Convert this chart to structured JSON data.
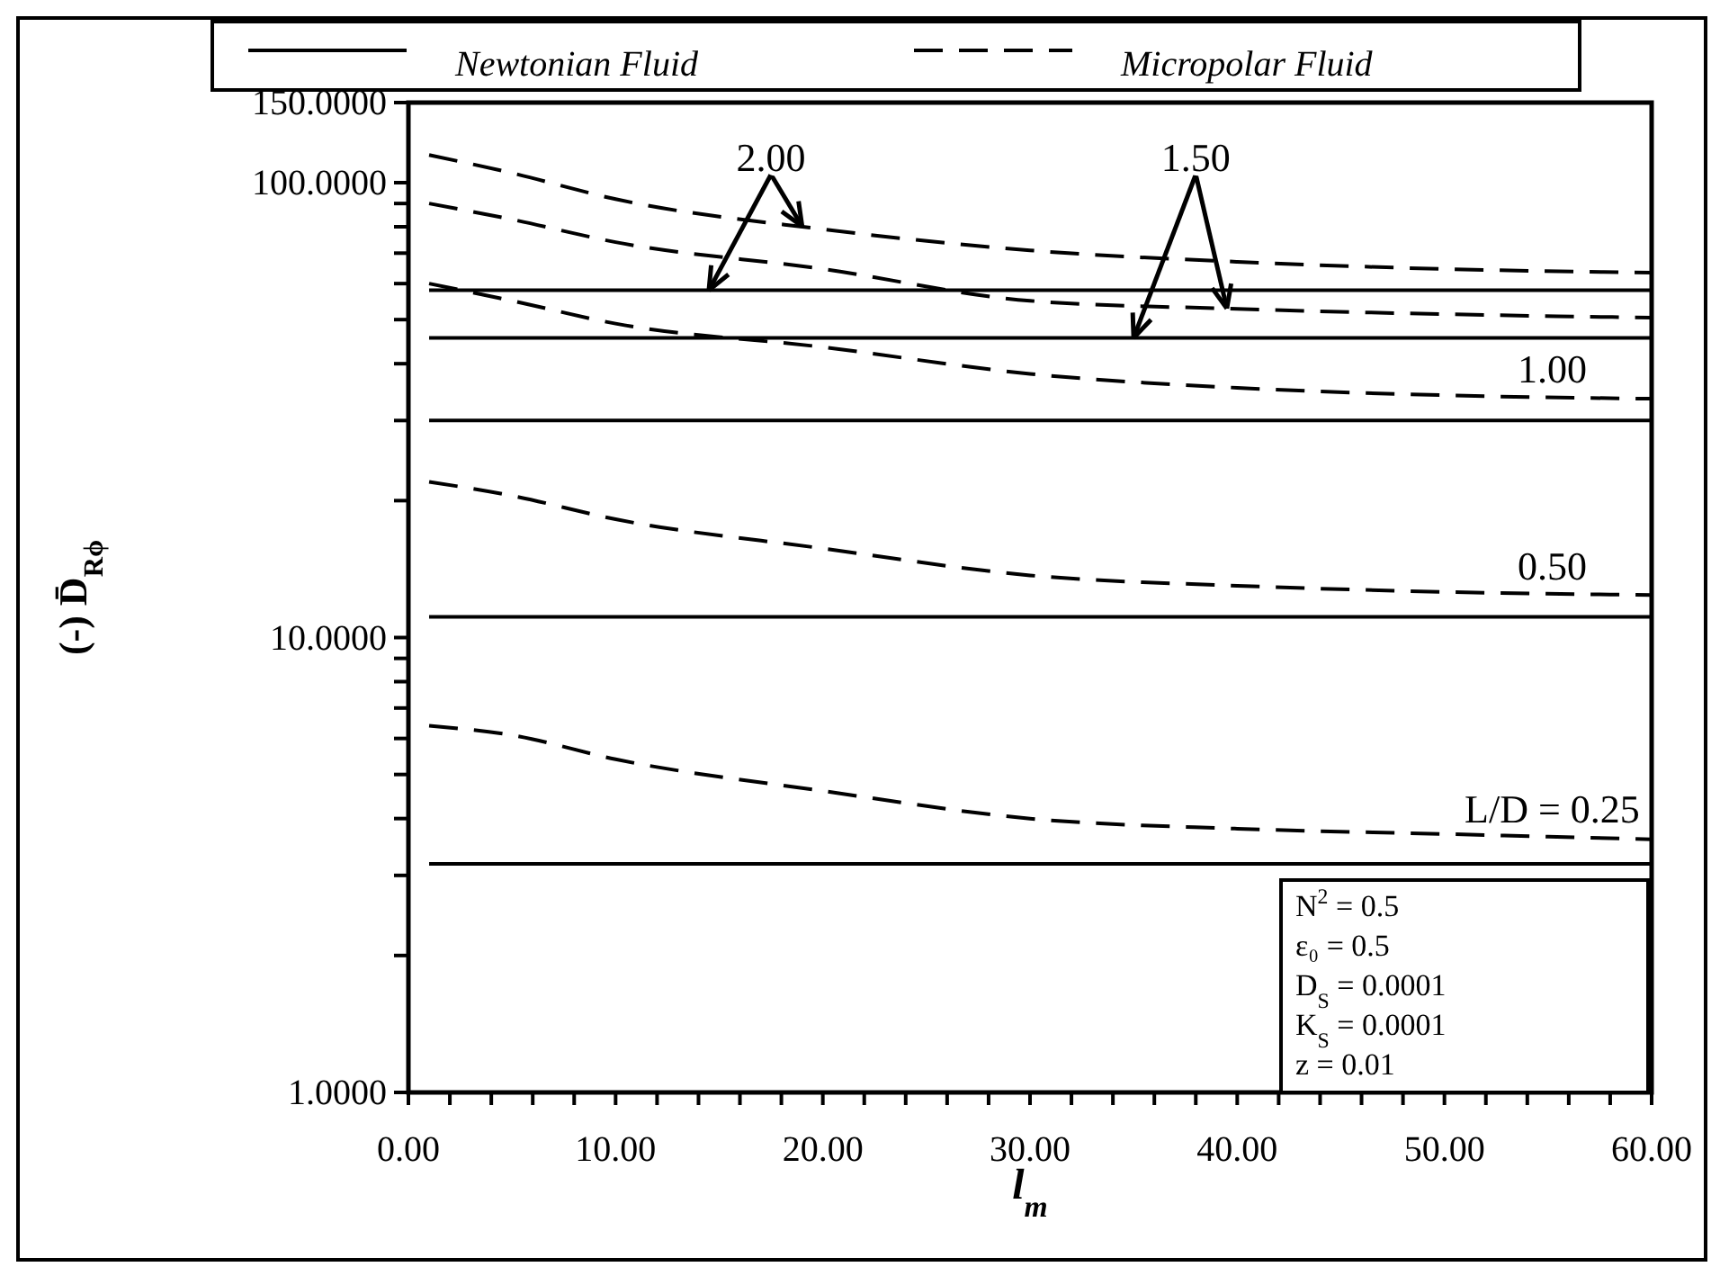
{
  "chart_data": {
    "type": "line",
    "xlabel": "l$_{m}$",
    "ylabel": "(-) D̄$_{Rϕ}$",
    "log": "y",
    "legend": "top",
    "marker": "none",
    "x": [
      1,
      5,
      10,
      20,
      30,
      40,
      50,
      60
    ],
    "xlim": [
      0,
      60
    ],
    "ylim": [
      1,
      150
    ],
    "xticks": [
      {
        "value": 0,
        "label": "0.00"
      },
      {
        "value": 2,
        "label": null
      },
      {
        "value": 4,
        "label": null
      },
      {
        "value": 6,
        "label": null
      },
      {
        "value": 8,
        "label": null
      },
      {
        "value": 10,
        "label": "10.00"
      },
      {
        "value": 12,
        "label": null
      },
      {
        "value": 14,
        "label": null
      },
      {
        "value": 16,
        "label": null
      },
      {
        "value": 18,
        "label": null
      },
      {
        "value": 20,
        "label": "20.00"
      },
      {
        "value": 22,
        "label": null
      },
      {
        "value": 24,
        "label": null
      },
      {
        "value": 26,
        "label": null
      },
      {
        "value": 28,
        "label": null
      },
      {
        "value": 30,
        "label": "30.00"
      },
      {
        "value": 32,
        "label": null
      },
      {
        "value": 34,
        "label": null
      },
      {
        "value": 36,
        "label": null
      },
      {
        "value": 38,
        "label": null
      },
      {
        "value": 40,
        "label": "40.00"
      },
      {
        "value": 42,
        "label": null
      },
      {
        "value": 44,
        "label": null
      },
      {
        "value": 46,
        "label": null
      },
      {
        "value": 48,
        "label": null
      },
      {
        "value": 50,
        "label": "50.00"
      },
      {
        "value": 52,
        "label": null
      },
      {
        "value": 54,
        "label": null
      },
      {
        "value": 56,
        "label": null
      },
      {
        "value": 58,
        "label": null
      },
      {
        "value": 60,
        "label": "60.00"
      }
    ],
    "yticks": [
      {
        "value": 1,
        "label": "1.0000"
      },
      {
        "value": 2,
        "label": null
      },
      {
        "value": 3,
        "label": null
      },
      {
        "value": 4,
        "label": null
      },
      {
        "value": 5,
        "label": null
      },
      {
        "value": 6,
        "label": null
      },
      {
        "value": 7,
        "label": null
      },
      {
        "value": 8,
        "label": null
      },
      {
        "value": 9,
        "label": null
      },
      {
        "value": 10,
        "label": "10.0000"
      },
      {
        "value": 20,
        "label": null
      },
      {
        "value": 30,
        "label": null
      },
      {
        "value": 40,
        "label": null
      },
      {
        "value": 50,
        "label": null
      },
      {
        "value": 60,
        "label": null
      },
      {
        "value": 70,
        "label": null
      },
      {
        "value": 80,
        "label": null
      },
      {
        "value": 90,
        "label": null
      },
      {
        "value": 100,
        "label": "100.0000"
      },
      {
        "value": 150,
        "label": "150.0000"
      }
    ],
    "series": [
      {
        "name": "Newtonian Fluid",
        "color": "#000000",
        "line_style": "solid",
        "values": [
          3.18,
          3.18,
          3.18,
          3.18,
          3.18,
          3.18,
          3.18,
          3.18
        ]
      },
      {
        "color": "#000000",
        "line_style": "solid",
        "values": [
          11.1,
          11.1,
          11.1,
          11.1,
          11.1,
          11.1,
          11.1,
          11.1
        ]
      },
      {
        "color": "#000000",
        "line_style": "solid",
        "values": [
          30,
          30,
          30,
          30,
          30,
          30,
          30,
          30
        ]
      },
      {
        "color": "#000000",
        "line_style": "solid",
        "values": [
          45.6,
          45.6,
          45.6,
          45.6,
          45.6,
          45.6,
          45.6,
          45.6
        ]
      },
      {
        "color": "#000000",
        "line_style": "solid",
        "values": [
          58,
          58,
          58,
          58,
          58,
          58,
          58,
          58
        ]
      },
      {
        "name": "Micropolar Fluid",
        "color": "#000000",
        "line_style": "dashed",
        "values": [
          6.4,
          6.1,
          5.4,
          4.6,
          4.0,
          3.8,
          3.7,
          3.6
        ]
      },
      {
        "color": "#000000",
        "line_style": "dashed",
        "values": [
          22,
          20.5,
          18.2,
          15.7,
          13.7,
          13.0,
          12.6,
          12.4
        ]
      },
      {
        "color": "#000000",
        "line_style": "dashed",
        "values": [
          60,
          55,
          49,
          43.5,
          38,
          35.4,
          34.1,
          33.5
        ]
      },
      {
        "color": "#000000",
        "line_style": "dashed",
        "values": [
          90,
          83,
          74,
          64.6,
          55,
          52.8,
          51.4,
          50.5
        ]
      },
      {
        "color": "#000000",
        "line_style": "dashed",
        "values": [
          115,
          105,
          92,
          79,
          71,
          67,
          64.6,
          63.4
        ]
      }
    ],
    "annotations": [
      "L/D = 0.25",
      "0.50",
      "1.00",
      {
        "text": "1.50",
        "x": 35,
        "y": 45.6
      },
      {
        "text": "2.00",
        "x": 14.5,
        "y": 58
      },
      "N$^{2}$ = 0.5",
      "ε₀ = 0.5",
      "D$_{S}$ = 0.0001",
      "K$_{S}$ = 0.0001",
      "z = 0.01"
    ]
  }
}
